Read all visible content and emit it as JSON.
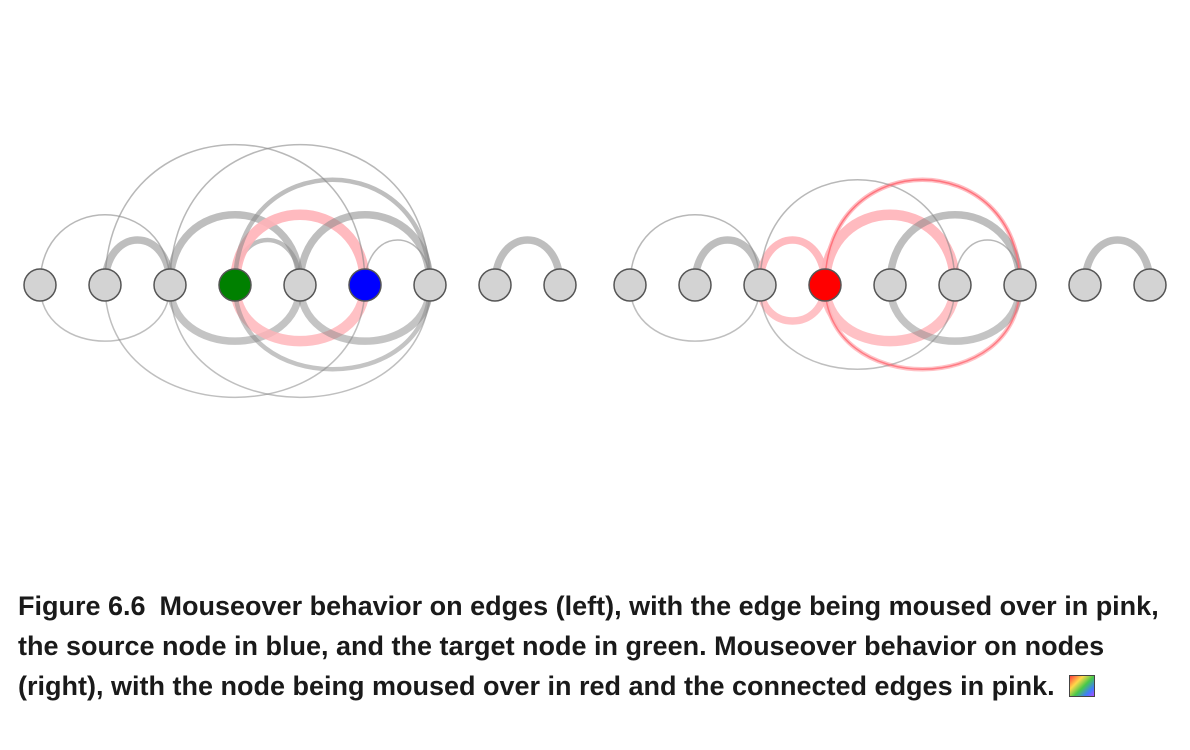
{
  "colors": {
    "node_fill": "#d3d3d3",
    "node_stroke": "#555555",
    "edge_gray": "#888888",
    "edge_pink": "#ffb3b8",
    "edge_red": "#ff6b75",
    "source": "#0000ff",
    "target": "#008000",
    "hover_node": "#ff0000"
  },
  "caption": {
    "label": "Figure 6.6",
    "text": "Mouseover behavior on edges (left), with the edge being moused over in pink, the source node in blue, and the target node in green. Mouseover behavior on nodes (right), with the node being moused over in red and the connected edges in pink."
  },
  "icons": {
    "caption_icon": "color-swatch-icon"
  },
  "panels": [
    {
      "name": "edge-hover-panel",
      "nodes": [
        {
          "id": 0,
          "state": "normal"
        },
        {
          "id": 1,
          "state": "normal"
        },
        {
          "id": 2,
          "state": "normal"
        },
        {
          "id": 3,
          "state": "target"
        },
        {
          "id": 4,
          "state": "normal"
        },
        {
          "id": 5,
          "state": "source"
        },
        {
          "id": 6,
          "state": "normal"
        },
        {
          "id": 7,
          "state": "normal"
        },
        {
          "id": 8,
          "state": "normal"
        }
      ],
      "edges": [
        {
          "from": 0,
          "to": 2,
          "weight": 1,
          "state": "normal"
        },
        {
          "from": 1,
          "to": 2,
          "weight": 3,
          "state": "normal"
        },
        {
          "from": 2,
          "to": 4,
          "weight": 3,
          "state": "normal"
        },
        {
          "from": 3,
          "to": 4,
          "weight": 2,
          "state": "normal"
        },
        {
          "from": 3,
          "to": 5,
          "weight": 4,
          "state": "highlight"
        },
        {
          "from": 3,
          "to": 6,
          "weight": 2,
          "state": "normal"
        },
        {
          "from": 4,
          "to": 6,
          "weight": 3,
          "state": "normal"
        },
        {
          "from": 5,
          "to": 6,
          "weight": 1,
          "state": "normal"
        },
        {
          "from": 1,
          "to": 5,
          "weight": 1,
          "state": "normal"
        },
        {
          "from": 2,
          "to": 6,
          "weight": 1,
          "state": "normal"
        },
        {
          "from": 7,
          "to": 8,
          "weight": 3,
          "state": "normal"
        }
      ]
    },
    {
      "name": "node-hover-panel",
      "nodes": [
        {
          "id": 0,
          "state": "normal"
        },
        {
          "id": 1,
          "state": "normal"
        },
        {
          "id": 2,
          "state": "normal"
        },
        {
          "id": 3,
          "state": "hover"
        },
        {
          "id": 4,
          "state": "normal"
        },
        {
          "id": 5,
          "state": "normal"
        },
        {
          "id": 6,
          "state": "normal"
        },
        {
          "id": 7,
          "state": "normal"
        },
        {
          "id": 8,
          "state": "normal"
        }
      ],
      "edges": [
        {
          "from": 0,
          "to": 2,
          "weight": 1,
          "state": "normal"
        },
        {
          "from": 1,
          "to": 2,
          "weight": 3,
          "state": "normal"
        },
        {
          "from": 2,
          "to": 3,
          "weight": 3,
          "state": "highlight"
        },
        {
          "from": 3,
          "to": 5,
          "weight": 4,
          "state": "highlight"
        },
        {
          "from": 3,
          "to": 6,
          "weight": 2,
          "state": "highlight"
        },
        {
          "from": 4,
          "to": 6,
          "weight": 3,
          "state": "normal"
        },
        {
          "from": 5,
          "to": 6,
          "weight": 1,
          "state": "normal"
        },
        {
          "from": 2,
          "to": 5,
          "weight": 1,
          "state": "normal"
        },
        {
          "from": 3,
          "to": 6,
          "weight": 1,
          "state": "highlight"
        },
        {
          "from": 7,
          "to": 8,
          "weight": 3,
          "state": "normal"
        }
      ]
    }
  ]
}
